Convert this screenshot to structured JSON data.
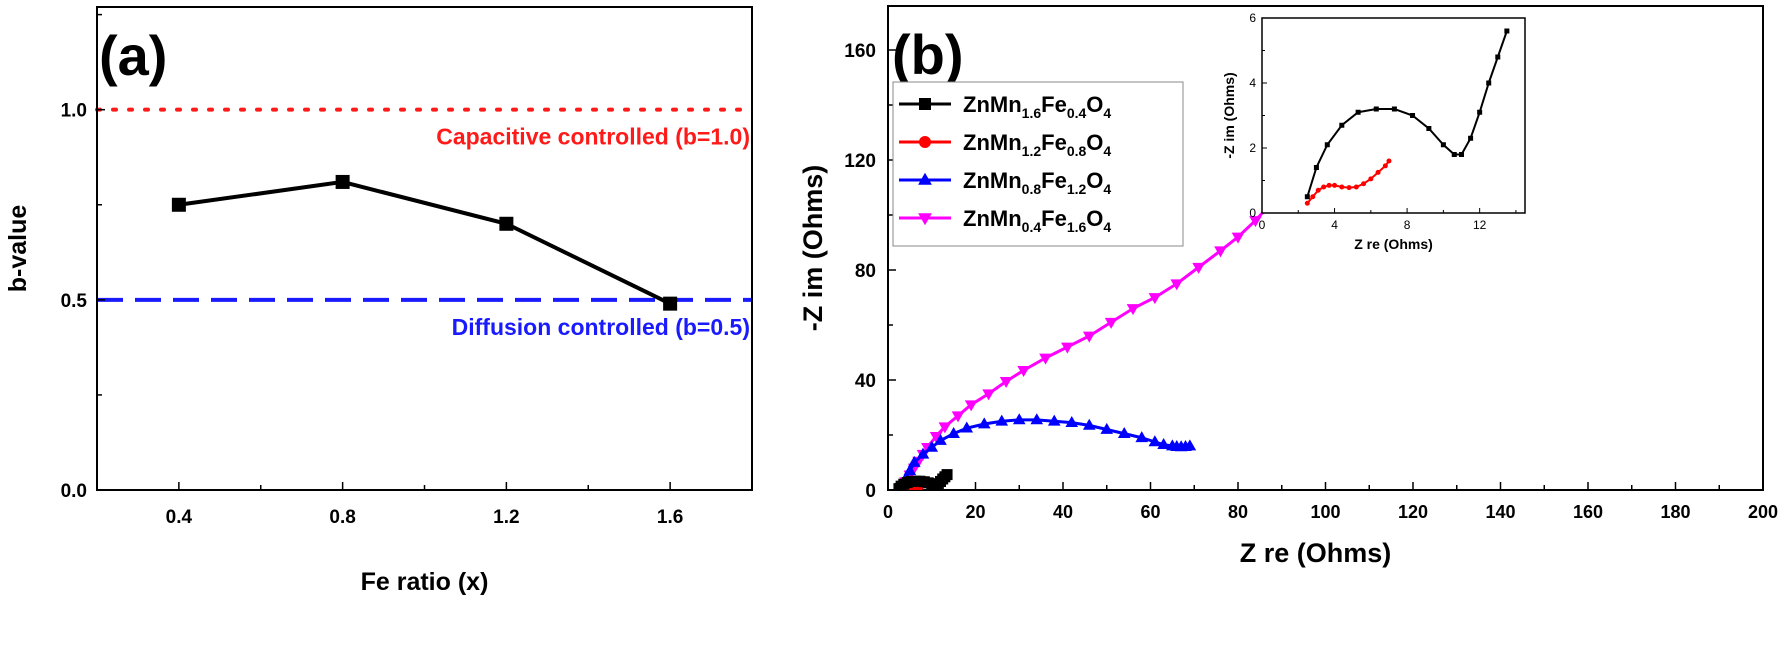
{
  "chart_data": [
    {
      "panel_label": "(a)",
      "type": "line",
      "xlabel": "Fe ratio (x)",
      "ylabel": "b-value",
      "xlim": [
        0.2,
        1.8
      ],
      "ylim": [
        0.0,
        1.27
      ],
      "xticks": [
        0.4,
        0.8,
        1.2,
        1.6
      ],
      "yticks": [
        0.0,
        0.5,
        1.0
      ],
      "tick_labels_x": [
        "0.4",
        "0.8",
        "1.2",
        "1.6"
      ],
      "tick_labels_y": [
        "0.0",
        "0.5",
        "1.0"
      ],
      "grid": false,
      "series": [
        {
          "x": [
            0.4,
            0.8,
            1.2,
            1.6
          ],
          "y": [
            0.75,
            0.81,
            0.7,
            0.49
          ],
          "color": "#000000",
          "marker": "square"
        }
      ],
      "reference_lines": [
        {
          "y": 1.0,
          "style": "dotted",
          "color": "#ff1a1a",
          "label": "Capacitive controlled (b=1.0)"
        },
        {
          "y": 0.5,
          "style": "dashed",
          "color": "#1a1aff",
          "label": "Diffusion controlled (b=0.5)"
        }
      ]
    },
    {
      "panel_label": "(b)",
      "type": "line",
      "xlabel": "Z re (Ohms)",
      "ylabel": "-Z im (Ohms)",
      "xlim": [
        0,
        200
      ],
      "ylim": [
        0,
        176
      ],
      "xticks": [
        0,
        20,
        40,
        60,
        80,
        100,
        120,
        140,
        160,
        180,
        200
      ],
      "yticks": [
        0,
        40,
        80,
        120,
        160
      ],
      "tick_labels_x": [
        "0",
        "20",
        "40",
        "60",
        "80",
        "100",
        "120",
        "140",
        "160",
        "180",
        "200"
      ],
      "tick_labels_y": [
        "0",
        "40",
        "80",
        "120",
        "160"
      ],
      "grid": false,
      "legend_placement": "top-left",
      "series": [
        {
          "name": "ZnMn1.6Fe0.4O4",
          "legend_parts": [
            "ZnMn",
            "1.6",
            "Fe",
            "0.4",
            "O",
            "4"
          ],
          "color": "#000000",
          "marker": "square",
          "x": [
            2.5,
            3.0,
            3.6,
            4.4,
            5.3,
            6.3,
            7.3,
            8.3,
            9.2,
            10.0,
            10.6,
            11.0,
            11.5,
            12.0,
            12.5,
            13.0,
            13.5
          ],
          "y": [
            0.5,
            1.4,
            2.1,
            2.7,
            3.1,
            3.2,
            3.2,
            3.0,
            2.6,
            2.1,
            1.8,
            1.8,
            2.3,
            3.1,
            4.0,
            4.8,
            5.6
          ]
        },
        {
          "name": "ZnMn1.2Fe0.8O4",
          "legend_parts": [
            "ZnMn",
            "1.2",
            "Fe",
            "0.8",
            "O",
            "4"
          ],
          "color": "#ff0000",
          "marker": "circle",
          "x": [
            2.5,
            2.8,
            3.1,
            3.4,
            3.7,
            4.0,
            4.4,
            4.8,
            5.2,
            5.6,
            6.0,
            6.4,
            6.8,
            7.0
          ],
          "y": [
            0.3,
            0.5,
            0.7,
            0.8,
            0.85,
            0.85,
            0.8,
            0.78,
            0.8,
            0.9,
            1.05,
            1.25,
            1.45,
            1.6
          ]
        },
        {
          "name": "ZnMn0.8Fe1.2O4",
          "legend_parts": [
            "ZnMn",
            "0.8",
            "Fe",
            "1.2",
            "O",
            "4"
          ],
          "color": "#0000ff",
          "marker": "triangle-up",
          "x": [
            3,
            4,
            5,
            6,
            8,
            10,
            12,
            15,
            18,
            22,
            26,
            30,
            34,
            38,
            42,
            46,
            50,
            54,
            58,
            61,
            63,
            65,
            66,
            67,
            68,
            69
          ],
          "y": [
            1,
            4,
            7,
            10,
            13,
            15.5,
            18,
            20.5,
            22.5,
            24,
            25,
            25.5,
            25.5,
            25,
            24.5,
            23.5,
            22,
            20.5,
            19,
            17.5,
            16.5,
            16,
            15.8,
            15.7,
            15.8,
            16
          ]
        },
        {
          "name": "ZnMn0.4Fe1.6O4",
          "legend_parts": [
            "ZnMn",
            "0.4",
            "Fe",
            "1.6",
            "O",
            "4"
          ],
          "color": "#ff00ff",
          "marker": "triangle-down",
          "x": [
            3,
            4,
            5,
            6,
            7,
            8,
            9,
            11,
            13,
            16,
            19,
            23,
            27,
            31,
            36,
            41,
            46,
            51,
            56,
            61,
            66,
            71,
            76,
            80,
            84,
            88,
            91,
            94,
            97,
            100,
            102
          ],
          "y": [
            1,
            3,
            5.5,
            8,
            10.5,
            13,
            15.5,
            19.5,
            23,
            27,
            31,
            35,
            39.5,
            43.5,
            48,
            52,
            56,
            61,
            66,
            70,
            75,
            81,
            87,
            92,
            98,
            105,
            114,
            124,
            139,
            155,
            167
          ]
        }
      ],
      "inset": {
        "xlabel": "Z re (Ohms)",
        "ylabel": "-Z im (Ohms)",
        "xlim": [
          0,
          14.5
        ],
        "ylim": [
          0,
          6
        ],
        "xticks": [
          0,
          4,
          8,
          12
        ],
        "yticks": [
          0,
          2,
          4,
          6
        ],
        "tick_labels_x": [
          "0",
          "4",
          "8",
          "12"
        ],
        "tick_labels_y": [
          "0",
          "2",
          "4",
          "6"
        ],
        "series_shown": [
          "ZnMn1.6Fe0.4O4",
          "ZnMn1.2Fe0.8O4"
        ]
      }
    }
  ]
}
